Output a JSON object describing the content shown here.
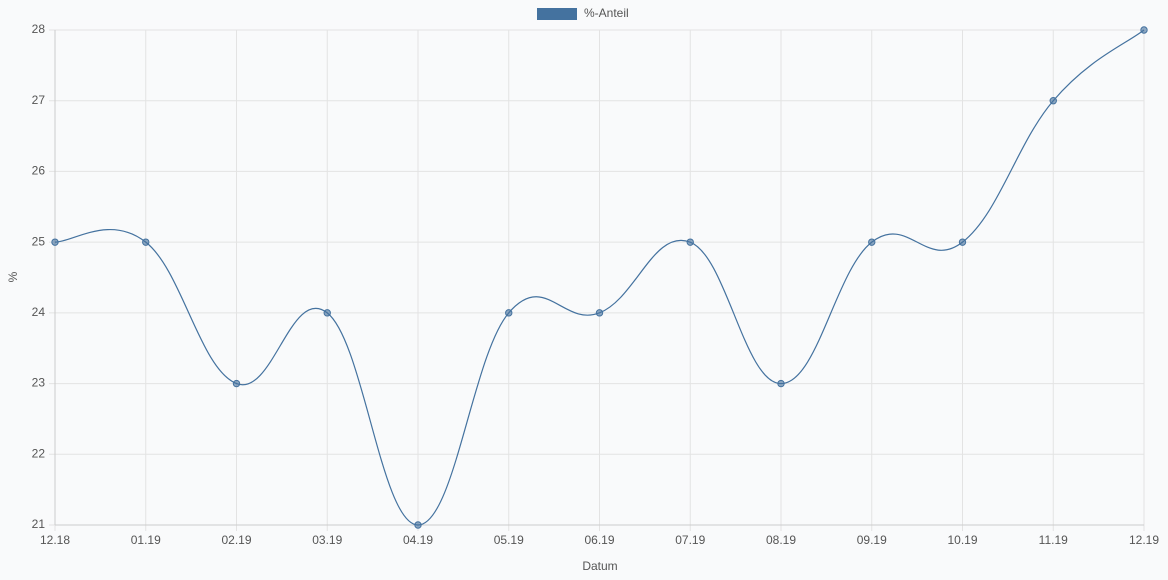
{
  "chart_data": {
    "type": "line",
    "xlabel": "Datum",
    "ylabel": "%",
    "categories": [
      "12.18",
      "01.19",
      "02.19",
      "03.19",
      "04.19",
      "05.19",
      "06.19",
      "07.19",
      "08.19",
      "09.19",
      "10.19",
      "11.19",
      "12.19"
    ],
    "series": [
      {
        "name": "%-Anteil",
        "color": "#44729f",
        "values": [
          25,
          25,
          23,
          24,
          21,
          24,
          24,
          25,
          23,
          25,
          25,
          27,
          28
        ]
      }
    ],
    "ylim": [
      21,
      28
    ],
    "yticks": [
      21,
      22,
      23,
      24,
      25,
      26,
      27,
      28
    ],
    "grid": true,
    "legend": "top"
  }
}
